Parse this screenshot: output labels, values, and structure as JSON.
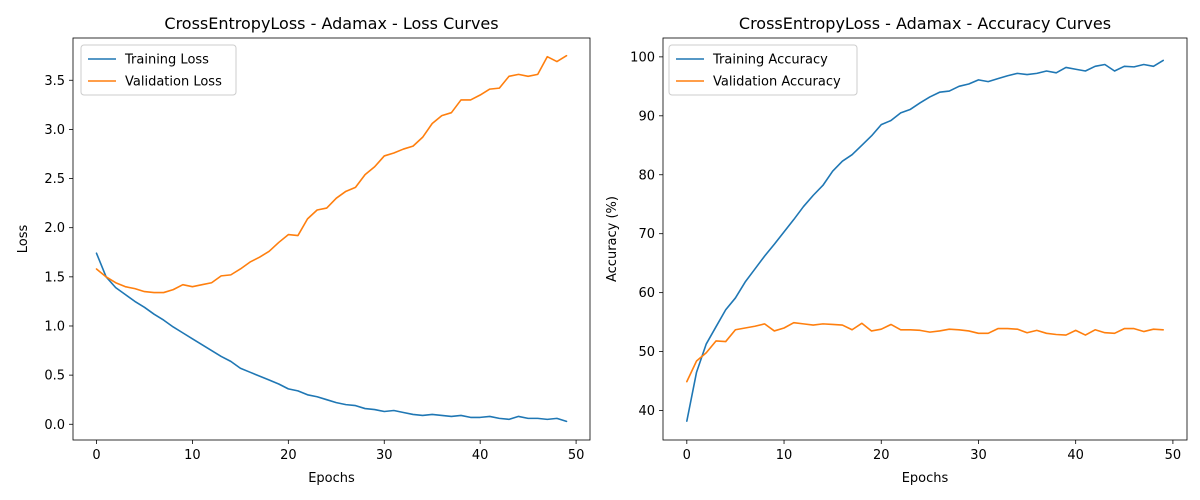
{
  "chart_data": [
    {
      "type": "line",
      "title": "CrossEntropyLoss - Adamax - Loss Curves",
      "xlabel": "Epochs",
      "ylabel": "Loss",
      "xlim": [
        -2.45,
        51.45
      ],
      "ylim": [
        -0.16,
        3.93
      ],
      "xticks": [
        0,
        10,
        20,
        30,
        40,
        50
      ],
      "yticks": [
        0.0,
        0.5,
        1.0,
        1.5,
        2.0,
        2.5,
        3.0,
        3.5
      ],
      "ytick_labels": [
        "0.0",
        "0.5",
        "1.0",
        "1.5",
        "2.0",
        "2.5",
        "3.0",
        "3.5"
      ],
      "legend": "top-left",
      "grid": false,
      "series": [
        {
          "name": "Training Loss",
          "color": "#1f77b4",
          "x": [
            0,
            1,
            2,
            3,
            4,
            5,
            6,
            7,
            8,
            9,
            10,
            11,
            12,
            13,
            14,
            15,
            16,
            17,
            18,
            19,
            20,
            21,
            22,
            23,
            24,
            25,
            26,
            27,
            28,
            29,
            30,
            31,
            32,
            33,
            34,
            35,
            36,
            37,
            38,
            39,
            40,
            41,
            42,
            43,
            44,
            45,
            46,
            47,
            48,
            49
          ],
          "values": [
            1.74,
            1.5,
            1.39,
            1.32,
            1.25,
            1.19,
            1.12,
            1.06,
            0.99,
            0.93,
            0.87,
            0.81,
            0.75,
            0.69,
            0.64,
            0.57,
            0.53,
            0.49,
            0.45,
            0.41,
            0.36,
            0.34,
            0.3,
            0.28,
            0.25,
            0.22,
            0.2,
            0.19,
            0.16,
            0.15,
            0.13,
            0.14,
            0.12,
            0.1,
            0.09,
            0.1,
            0.09,
            0.08,
            0.09,
            0.07,
            0.07,
            0.08,
            0.06,
            0.05,
            0.08,
            0.06,
            0.06,
            0.05,
            0.06,
            0.03
          ]
        },
        {
          "name": "Validation Loss",
          "color": "#ff7f0e",
          "x": [
            0,
            1,
            2,
            3,
            4,
            5,
            6,
            7,
            8,
            9,
            10,
            11,
            12,
            13,
            14,
            15,
            16,
            17,
            18,
            19,
            20,
            21,
            22,
            23,
            24,
            25,
            26,
            27,
            28,
            29,
            30,
            31,
            32,
            33,
            34,
            35,
            36,
            37,
            38,
            39,
            40,
            41,
            42,
            43,
            44,
            45,
            46,
            47,
            48,
            49
          ],
          "values": [
            1.58,
            1.5,
            1.44,
            1.4,
            1.38,
            1.35,
            1.34,
            1.34,
            1.37,
            1.42,
            1.4,
            1.42,
            1.44,
            1.51,
            1.52,
            1.58,
            1.65,
            1.7,
            1.76,
            1.85,
            1.93,
            1.92,
            2.09,
            2.18,
            2.2,
            2.3,
            2.37,
            2.41,
            2.54,
            2.62,
            2.73,
            2.76,
            2.8,
            2.83,
            2.92,
            3.06,
            3.14,
            3.17,
            3.3,
            3.3,
            3.35,
            3.41,
            3.42,
            3.54,
            3.56,
            3.54,
            3.56,
            3.74,
            3.69,
            3.75
          ]
        }
      ]
    },
    {
      "type": "line",
      "title": "CrossEntropyLoss - Adamax - Accuracy Curves",
      "xlabel": "Epochs",
      "ylabel": "Accuracy (%)",
      "xlim": [
        -2.45,
        51.45
      ],
      "ylim": [
        35.0,
        103.2
      ],
      "xticks": [
        0,
        10,
        20,
        30,
        40,
        50
      ],
      "yticks": [
        40,
        50,
        60,
        70,
        80,
        90,
        100
      ],
      "ytick_labels": [
        "40",
        "50",
        "60",
        "70",
        "80",
        "90",
        "100"
      ],
      "legend": "top-left",
      "grid": false,
      "series": [
        {
          "name": "Training Accuracy",
          "color": "#1f77b4",
          "x": [
            0,
            1,
            2,
            3,
            4,
            5,
            6,
            7,
            8,
            9,
            10,
            11,
            12,
            13,
            14,
            15,
            16,
            17,
            18,
            19,
            20,
            21,
            22,
            23,
            24,
            25,
            26,
            27,
            28,
            29,
            30,
            31,
            32,
            33,
            34,
            35,
            36,
            37,
            38,
            39,
            40,
            41,
            42,
            43,
            44,
            45,
            46,
            47,
            48,
            49
          ],
          "values": [
            38.2,
            46.5,
            51.3,
            54.2,
            57.1,
            59.1,
            61.8,
            64.0,
            66.2,
            68.2,
            70.3,
            72.4,
            74.6,
            76.5,
            78.2,
            80.6,
            82.3,
            83.4,
            85.0,
            86.6,
            88.5,
            89.2,
            90.5,
            91.1,
            92.2,
            93.2,
            94.0,
            94.2,
            95.0,
            95.4,
            96.1,
            95.8,
            96.3,
            96.8,
            97.2,
            97.0,
            97.2,
            97.6,
            97.3,
            98.2,
            97.9,
            97.6,
            98.4,
            98.7,
            97.6,
            98.4,
            98.3,
            98.7,
            98.4,
            99.4
          ]
        },
        {
          "name": "Validation Accuracy",
          "color": "#ff7f0e",
          "x": [
            0,
            1,
            2,
            3,
            4,
            5,
            6,
            7,
            8,
            9,
            10,
            11,
            12,
            13,
            14,
            15,
            16,
            17,
            18,
            19,
            20,
            21,
            22,
            23,
            24,
            25,
            26,
            27,
            28,
            29,
            30,
            31,
            32,
            33,
            34,
            35,
            36,
            37,
            38,
            39,
            40,
            41,
            42,
            43,
            44,
            45,
            46,
            47,
            48,
            49
          ],
          "values": [
            44.9,
            48.4,
            49.8,
            51.8,
            51.7,
            53.7,
            54.0,
            54.3,
            54.7,
            53.5,
            54.0,
            54.9,
            54.7,
            54.5,
            54.7,
            54.6,
            54.5,
            53.7,
            54.8,
            53.5,
            53.8,
            54.6,
            53.7,
            53.7,
            53.6,
            53.3,
            53.5,
            53.8,
            53.7,
            53.5,
            53.1,
            53.1,
            53.9,
            53.9,
            53.8,
            53.2,
            53.6,
            53.1,
            52.9,
            52.8,
            53.6,
            52.8,
            53.7,
            53.2,
            53.1,
            53.9,
            53.9,
            53.4,
            53.8,
            53.7
          ]
        }
      ]
    }
  ]
}
